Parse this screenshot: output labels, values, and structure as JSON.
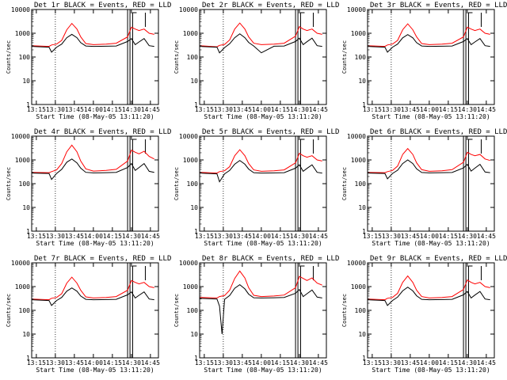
{
  "colors": {
    "events": "#000000",
    "lld": "#ff0000",
    "background": "#ffffff"
  },
  "common": {
    "xlabel": "Start Time (08-May-05 13:11:20)",
    "ylabel": "Counts/sec",
    "y_ticks": [
      "1",
      "10",
      "100",
      "1000",
      "10000"
    ],
    "x_ticks": [
      "13:15",
      "13:30",
      "13:45",
      "14:00",
      "14:15",
      "14:30",
      "14:45"
    ]
  },
  "chart_data": [
    {
      "type": "line",
      "title": "Det 1r BLACK = Events, RED = LLD",
      "y_scale": "log",
      "ylim": [
        1,
        10000
      ],
      "xlim": [
        "13:11:20",
        "14:51:20"
      ],
      "series": [
        {
          "x": [
            "13:11",
            "13:25",
            "13:27",
            "13:31",
            "13:35",
            "13:39",
            "13:43",
            "13:47",
            "13:50",
            "13:54",
            "14:00",
            "14:10",
            "14:18",
            "14:27",
            "14:30",
            "14:33",
            "14:36",
            "14:40",
            "14:44",
            "14:48"
          ],
          "values": [
            300,
            280,
            320,
            350,
            500,
            1400,
            2600,
            1500,
            700,
            370,
            330,
            350,
            380,
            700,
            1800,
            1500,
            1300,
            1500,
            1000,
            900
          ]
        },
        {
          "x": [
            "13:11",
            "13:25",
            "13:27",
            "13:31",
            "13:35",
            "13:39",
            "13:43",
            "13:47",
            "13:50",
            "13:54",
            "14:00",
            "14:10",
            "14:18",
            "14:27",
            "14:30",
            "14:33",
            "14:36",
            "14:40",
            "14:44",
            "14:48"
          ],
          "values": [
            280,
            260,
            160,
            260,
            350,
            650,
            900,
            650,
            400,
            290,
            280,
            285,
            290,
            450,
            600,
            330,
            430,
            600,
            300,
            280
          ]
        }
      ]
    },
    {
      "type": "line",
      "title": "Det 2r BLACK = Events, RED = LLD",
      "y_scale": "log",
      "ylim": [
        1,
        10000
      ],
      "xlim": [
        "13:11:20",
        "14:51:20"
      ],
      "series": [
        {
          "x": [
            "13:11",
            "13:25",
            "13:27",
            "13:31",
            "13:35",
            "13:39",
            "13:43",
            "13:47",
            "13:50",
            "13:54",
            "14:00",
            "14:10",
            "14:18",
            "14:27",
            "14:30",
            "14:33",
            "14:36",
            "14:40",
            "14:44",
            "14:48"
          ],
          "values": [
            300,
            270,
            310,
            340,
            520,
            1500,
            2700,
            1500,
            700,
            380,
            330,
            350,
            380,
            750,
            1900,
            1500,
            1300,
            1500,
            1000,
            900
          ]
        },
        {
          "x": [
            "13:11",
            "13:25",
            "13:27",
            "13:31",
            "13:35",
            "13:39",
            "13:43",
            "13:47",
            "13:50",
            "13:54",
            "14:00",
            "14:10",
            "14:18",
            "14:27",
            "14:30",
            "14:33",
            "14:36",
            "14:40",
            "14:44",
            "14:48"
          ],
          "values": [
            280,
            260,
            150,
            250,
            360,
            650,
            950,
            650,
            410,
            290,
            150,
            285,
            290,
            450,
            620,
            330,
            440,
            620,
            300,
            280
          ]
        }
      ]
    },
    {
      "type": "line",
      "title": "Det 3r BLACK = Events, RED = LLD",
      "y_scale": "log",
      "ylim": [
        1,
        10000
      ],
      "xlim": [
        "13:11:20",
        "14:51:20"
      ],
      "series": [
        {
          "x": [
            "13:11",
            "13:25",
            "13:27",
            "13:31",
            "13:35",
            "13:39",
            "13:43",
            "13:47",
            "13:50",
            "13:54",
            "14:00",
            "14:10",
            "14:18",
            "14:27",
            "14:30",
            "14:33",
            "14:36",
            "14:40",
            "14:44",
            "14:48"
          ],
          "values": [
            300,
            280,
            320,
            350,
            500,
            1400,
            2500,
            1400,
            700,
            370,
            330,
            350,
            380,
            700,
            1800,
            1500,
            1300,
            1500,
            1000,
            900
          ]
        },
        {
          "x": [
            "13:11",
            "13:25",
            "13:27",
            "13:31",
            "13:35",
            "13:39",
            "13:43",
            "13:47",
            "13:50",
            "13:54",
            "14:00",
            "14:10",
            "14:18",
            "14:27",
            "14:30",
            "14:33",
            "14:36",
            "14:40",
            "14:44",
            "14:48"
          ],
          "values": [
            280,
            260,
            160,
            260,
            350,
            640,
            880,
            640,
            400,
            290,
            280,
            285,
            290,
            450,
            600,
            330,
            430,
            600,
            300,
            280
          ]
        }
      ]
    },
    {
      "type": "line",
      "title": "Det 4r BLACK = Events, RED = LLD",
      "y_scale": "log",
      "ylim": [
        1,
        10000
      ],
      "xlim": [
        "13:11:20",
        "14:51:20"
      ],
      "series": [
        {
          "x": [
            "13:11",
            "13:25",
            "13:27",
            "13:31",
            "13:35",
            "13:39",
            "13:43",
            "13:47",
            "13:50",
            "13:54",
            "14:00",
            "14:10",
            "14:18",
            "14:27",
            "14:30",
            "14:33",
            "14:36",
            "14:40",
            "14:44",
            "14:48"
          ],
          "values": [
            300,
            290,
            320,
            380,
            700,
            2200,
            4200,
            2200,
            900,
            420,
            340,
            360,
            400,
            900,
            2600,
            2100,
            1800,
            2300,
            1400,
            1100
          ]
        },
        {
          "x": [
            "13:11",
            "13:25",
            "13:27",
            "13:31",
            "13:35",
            "13:39",
            "13:43",
            "13:47",
            "13:50",
            "13:54",
            "14:00",
            "14:10",
            "14:18",
            "14:27",
            "14:30",
            "14:33",
            "14:36",
            "14:40",
            "14:44",
            "14:48"
          ],
          "values": [
            280,
            270,
            150,
            270,
            400,
            800,
            1100,
            750,
            450,
            300,
            285,
            290,
            300,
            480,
            700,
            360,
            480,
            700,
            330,
            300
          ]
        }
      ]
    },
    {
      "type": "line",
      "title": "Det 5r BLACK = Events, RED = LLD",
      "y_scale": "log",
      "ylim": [
        1,
        10000
      ],
      "xlim": [
        "13:11:20",
        "14:51:20"
      ],
      "series": [
        {
          "x": [
            "13:11",
            "13:25",
            "13:27",
            "13:31",
            "13:35",
            "13:39",
            "13:43",
            "13:47",
            "13:50",
            "13:54",
            "14:00",
            "14:10",
            "14:18",
            "14:27",
            "14:30",
            "14:33",
            "14:36",
            "14:40",
            "14:44",
            "14:48"
          ],
          "values": [
            300,
            280,
            320,
            350,
            520,
            1500,
            2700,
            1500,
            700,
            380,
            330,
            350,
            380,
            750,
            1900,
            1500,
            1300,
            1500,
            1000,
            900
          ]
        },
        {
          "x": [
            "13:11",
            "13:25",
            "13:27",
            "13:31",
            "13:35",
            "13:39",
            "13:43",
            "13:47",
            "13:50",
            "13:54",
            "14:00",
            "14:10",
            "14:18",
            "14:27",
            "14:30",
            "14:33",
            "14:36",
            "14:40",
            "14:44",
            "14:48"
          ],
          "values": [
            280,
            260,
            120,
            260,
            360,
            660,
            950,
            660,
            410,
            290,
            280,
            285,
            290,
            450,
            620,
            330,
            440,
            620,
            300,
            280
          ]
        }
      ]
    },
    {
      "type": "line",
      "title": "Det 6r BLACK = Events, RED = LLD",
      "y_scale": "log",
      "ylim": [
        1,
        10000
      ],
      "xlim": [
        "13:11:20",
        "14:51:20"
      ],
      "series": [
        {
          "x": [
            "13:11",
            "13:25",
            "13:27",
            "13:31",
            "13:35",
            "13:39",
            "13:43",
            "13:47",
            "13:50",
            "13:54",
            "14:00",
            "14:10",
            "14:18",
            "14:27",
            "14:30",
            "14:33",
            "14:36",
            "14:40",
            "14:44",
            "14:48"
          ],
          "values": [
            300,
            290,
            320,
            360,
            550,
            1700,
            3000,
            1700,
            750,
            390,
            330,
            350,
            390,
            800,
            2100,
            1700,
            1500,
            1700,
            1100,
            950
          ]
        },
        {
          "x": [
            "13:11",
            "13:25",
            "13:27",
            "13:31",
            "13:35",
            "13:39",
            "13:43",
            "13:47",
            "13:50",
            "13:54",
            "14:00",
            "14:10",
            "14:18",
            "14:27",
            "14:30",
            "14:33",
            "14:36",
            "14:40",
            "14:44",
            "14:48"
          ],
          "values": [
            280,
            270,
            160,
            270,
            370,
            700,
            1000,
            700,
            420,
            295,
            285,
            290,
            295,
            460,
            650,
            340,
            450,
            650,
            310,
            290
          ]
        }
      ]
    },
    {
      "type": "line",
      "title": "Det 7r BLACK = Events, RED = LLD",
      "y_scale": "log",
      "ylim": [
        1,
        10000
      ],
      "xlim": [
        "13:11:20",
        "14:51:20"
      ],
      "series": [
        {
          "x": [
            "13:11",
            "13:25",
            "13:27",
            "13:31",
            "13:35",
            "13:39",
            "13:43",
            "13:47",
            "13:50",
            "13:54",
            "14:00",
            "14:10",
            "14:18",
            "14:27",
            "14:30",
            "14:33",
            "14:36",
            "14:40",
            "14:44",
            "14:48"
          ],
          "values": [
            300,
            280,
            320,
            350,
            500,
            1400,
            2500,
            1400,
            700,
            370,
            330,
            350,
            380,
            700,
            1800,
            1500,
            1300,
            1500,
            1000,
            900
          ]
        },
        {
          "x": [
            "13:11",
            "13:25",
            "13:27",
            "13:31",
            "13:35",
            "13:39",
            "13:43",
            "13:47",
            "13:50",
            "13:54",
            "14:00",
            "14:10",
            "14:18",
            "14:27",
            "14:30",
            "14:33",
            "14:36",
            "14:40",
            "14:44",
            "14:48"
          ],
          "values": [
            280,
            260,
            160,
            260,
            350,
            640,
            880,
            640,
            400,
            290,
            280,
            285,
            290,
            450,
            600,
            330,
            430,
            600,
            300,
            280
          ]
        }
      ]
    },
    {
      "type": "line",
      "title": "Det 8r BLACK = Events, RED = LLD",
      "y_scale": "log",
      "ylim": [
        1,
        10000
      ],
      "xlim": [
        "13:11:20",
        "14:51:20"
      ],
      "series": [
        {
          "x": [
            "13:11",
            "13:25",
            "13:27",
            "13:31",
            "13:35",
            "13:39",
            "13:43",
            "13:47",
            "13:50",
            "13:54",
            "14:00",
            "14:10",
            "14:18",
            "14:27",
            "14:30",
            "14:33",
            "14:36",
            "14:40",
            "14:44",
            "14:48"
          ],
          "values": [
            350,
            330,
            380,
            420,
            700,
            2200,
            4500,
            2300,
            900,
            430,
            380,
            400,
            440,
            900,
            2700,
            2200,
            1800,
            2300,
            1400,
            1150
          ]
        },
        {
          "x": [
            "13:11",
            "13:25",
            "13:27",
            "13:29",
            "13:31",
            "13:35",
            "13:39",
            "13:43",
            "13:47",
            "13:50",
            "13:54",
            "14:00",
            "14:10",
            "14:18",
            "14:27",
            "14:30",
            "14:33",
            "14:36",
            "14:40",
            "14:44",
            "14:48"
          ],
          "values": [
            320,
            300,
            150,
            10,
            290,
            420,
            850,
            1200,
            800,
            480,
            340,
            330,
            340,
            350,
            520,
            750,
            380,
            500,
            720,
            360,
            330
          ]
        }
      ]
    },
    {
      "type": "line",
      "title": "Det 9r BLACK = Events, RED = LLD",
      "y_scale": "log",
      "ylim": [
        1,
        10000
      ],
      "xlim": [
        "13:11:20",
        "14:51:20"
      ],
      "series": [
        {
          "x": [
            "13:11",
            "13:25",
            "13:27",
            "13:31",
            "13:35",
            "13:39",
            "13:43",
            "13:47",
            "13:50",
            "13:54",
            "14:00",
            "14:10",
            "14:18",
            "14:27",
            "14:30",
            "14:33",
            "14:36",
            "14:40",
            "14:44",
            "14:48"
          ],
          "values": [
            300,
            280,
            320,
            350,
            520,
            1500,
            2800,
            1500,
            700,
            380,
            330,
            350,
            380,
            750,
            1900,
            1500,
            1300,
            1500,
            1000,
            900
          ]
        },
        {
          "x": [
            "13:11",
            "13:25",
            "13:27",
            "13:31",
            "13:35",
            "13:39",
            "13:43",
            "13:47",
            "13:50",
            "13:54",
            "14:00",
            "14:10",
            "14:18",
            "14:27",
            "14:30",
            "14:33",
            "14:36",
            "14:40",
            "14:44",
            "14:48"
          ],
          "values": [
            280,
            260,
            160,
            260,
            360,
            660,
            950,
            660,
            410,
            290,
            280,
            285,
            290,
            450,
            620,
            330,
            440,
            620,
            300,
            280
          ]
        }
      ]
    }
  ]
}
